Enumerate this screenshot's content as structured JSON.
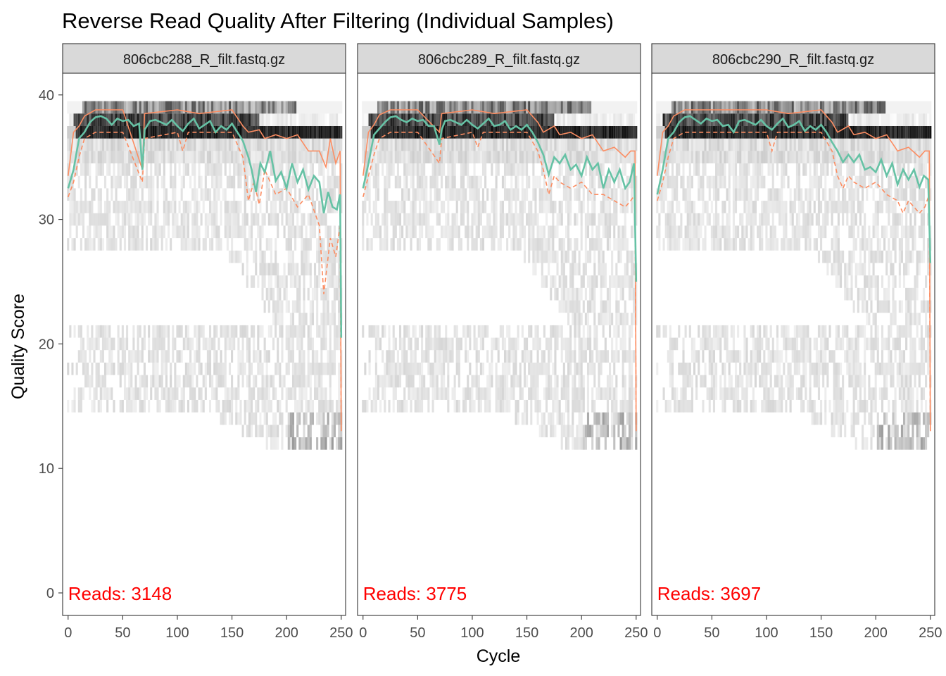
{
  "chart_data": {
    "type": "heatmap",
    "title": "Reverse Read Quality After Filtering (Individual Samples)",
    "xlabel": "Cycle",
    "ylabel": "Quality Score",
    "xlim": [
      -5,
      254
    ],
    "ylim": [
      -2,
      42
    ],
    "x_ticks": [
      "0",
      "50",
      "100",
      "150",
      "200",
      "250"
    ],
    "y_ticks": [
      "0",
      "10",
      "20",
      "30",
      "40"
    ],
    "colors": {
      "mean_line": "#66C2A5",
      "quartile_lines": "#FC8D62",
      "reads_label": "#FF0000",
      "strip_fill": "#D9D9D9",
      "panel_border": "#333333"
    },
    "panels": [
      {
        "strip": "806cbc288_R_filt.fastq.gz",
        "reads_prefix": "Reads: ",
        "reads": "3148",
        "mean": [
          [
            0,
            32.5
          ],
          [
            5,
            34
          ],
          [
            10,
            36.5
          ],
          [
            15,
            37
          ],
          [
            20,
            37.8
          ],
          [
            25,
            38.2
          ],
          [
            30,
            38.3
          ],
          [
            35,
            38.1
          ],
          [
            40,
            37.6
          ],
          [
            45,
            38.1
          ],
          [
            50,
            37.9
          ],
          [
            55,
            38.0
          ],
          [
            60,
            37.5
          ],
          [
            65,
            37.7
          ],
          [
            68,
            34
          ],
          [
            70,
            37.2
          ],
          [
            75,
            37.9
          ],
          [
            80,
            38.0
          ],
          [
            85,
            37.8
          ],
          [
            90,
            37.6
          ],
          [
            95,
            38.0
          ],
          [
            100,
            37.5
          ],
          [
            105,
            37.1
          ],
          [
            110,
            37.7
          ],
          [
            115,
            38.1
          ],
          [
            120,
            37.3
          ],
          [
            125,
            37.6
          ],
          [
            130,
            37.9
          ],
          [
            135,
            37.0
          ],
          [
            140,
            37.5
          ],
          [
            145,
            37.2
          ],
          [
            150,
            37.7
          ],
          [
            155,
            37.0
          ],
          [
            160,
            36.3
          ],
          [
            165,
            35.0
          ],
          [
            168,
            34
          ],
          [
            172,
            32.2
          ],
          [
            176,
            34.5
          ],
          [
            180,
            33.8
          ],
          [
            185,
            35.5
          ],
          [
            190,
            33.1
          ],
          [
            195,
            33.8
          ],
          [
            200,
            32.5
          ],
          [
            205,
            34.5
          ],
          [
            210,
            33.0
          ],
          [
            215,
            34.0
          ],
          [
            220,
            32.4
          ],
          [
            225,
            33.5
          ],
          [
            230,
            33.0
          ],
          [
            234,
            30.5
          ],
          [
            238,
            32.2
          ],
          [
            242,
            31.0
          ],
          [
            246,
            30.8
          ],
          [
            249,
            32.0
          ],
          [
            250,
            20.5
          ]
        ],
        "q75": [
          [
            0,
            33.5
          ],
          [
            5,
            37
          ],
          [
            10,
            37.5
          ],
          [
            15,
            38.3
          ],
          [
            25,
            38.8
          ],
          [
            50,
            38.8
          ],
          [
            68,
            34.0
          ],
          [
            70,
            38.5
          ],
          [
            100,
            38.8
          ],
          [
            120,
            38.5
          ],
          [
            150,
            38.8
          ],
          [
            160,
            37.5
          ],
          [
            165,
            37.0
          ],
          [
            175,
            37.2
          ],
          [
            180,
            36.5
          ],
          [
            190,
            36.8
          ],
          [
            200,
            36.5
          ],
          [
            210,
            36.8
          ],
          [
            220,
            35.5
          ],
          [
            230,
            35.5
          ],
          [
            236,
            34.2
          ],
          [
            240,
            36.5
          ],
          [
            245,
            34.5
          ],
          [
            249,
            35.5
          ],
          [
            250,
            13
          ]
        ],
        "q25": [
          [
            0,
            31.8
          ],
          [
            5,
            33
          ],
          [
            10,
            35.0
          ],
          [
            15,
            36.5
          ],
          [
            25,
            37.0
          ],
          [
            50,
            37.0
          ],
          [
            68,
            33.0
          ],
          [
            70,
            36.5
          ],
          [
            100,
            37.0
          ],
          [
            105,
            35.5
          ],
          [
            110,
            37.0
          ],
          [
            150,
            37.0
          ],
          [
            160,
            35.0
          ],
          [
            165,
            31.5
          ],
          [
            170,
            33.0
          ],
          [
            175,
            31.2
          ],
          [
            180,
            34.0
          ],
          [
            190,
            32.0
          ],
          [
            200,
            32.5
          ],
          [
            210,
            31.0
          ],
          [
            220,
            32.0
          ],
          [
            230,
            29.5
          ],
          [
            234,
            24.0
          ],
          [
            240,
            28.5
          ],
          [
            245,
            27.0
          ],
          [
            249,
            29.5
          ],
          [
            250,
            13
          ]
        ],
        "ramp_pos": 0.55
      },
      {
        "strip": "806cbc289_R_filt.fastq.gz",
        "reads_prefix": "Reads: ",
        "reads": "3775",
        "mean": [
          [
            0,
            32.5
          ],
          [
            5,
            34.5
          ],
          [
            10,
            36.8
          ],
          [
            15,
            37.3
          ],
          [
            20,
            37.8
          ],
          [
            25,
            38.2
          ],
          [
            30,
            38.3
          ],
          [
            35,
            38.0
          ],
          [
            40,
            37.8
          ],
          [
            45,
            38.1
          ],
          [
            50,
            37.9
          ],
          [
            55,
            38.0
          ],
          [
            60,
            37.5
          ],
          [
            65,
            37.5
          ],
          [
            70,
            36.0
          ],
          [
            72,
            37.2
          ],
          [
            75,
            37.9
          ],
          [
            80,
            38.0
          ],
          [
            85,
            37.8
          ],
          [
            90,
            37.6
          ],
          [
            95,
            38.0
          ],
          [
            100,
            37.6
          ],
          [
            105,
            37.3
          ],
          [
            110,
            37.7
          ],
          [
            115,
            38.1
          ],
          [
            120,
            37.5
          ],
          [
            125,
            37.6
          ],
          [
            130,
            37.9
          ],
          [
            135,
            37.2
          ],
          [
            140,
            37.5
          ],
          [
            145,
            37.2
          ],
          [
            150,
            37.6
          ],
          [
            155,
            37.0
          ],
          [
            160,
            36.2
          ],
          [
            165,
            35.2
          ],
          [
            170,
            33.6
          ],
          [
            175,
            35.0
          ],
          [
            180,
            34.5
          ],
          [
            185,
            35.2
          ],
          [
            190,
            34.0
          ],
          [
            195,
            34.4
          ],
          [
            200,
            33.5
          ],
          [
            205,
            35.0
          ],
          [
            210,
            34.0
          ],
          [
            215,
            34.5
          ],
          [
            220,
            32.5
          ],
          [
            225,
            34.0
          ],
          [
            230,
            33.0
          ],
          [
            235,
            34.0
          ],
          [
            240,
            32.5
          ],
          [
            244,
            33.0
          ],
          [
            248,
            34.5
          ],
          [
            250,
            25.0
          ]
        ],
        "q75": [
          [
            0,
            33.5
          ],
          [
            5,
            37
          ],
          [
            10,
            37.6
          ],
          [
            15,
            38.4
          ],
          [
            25,
            38.8
          ],
          [
            50,
            38.8
          ],
          [
            70,
            37.0
          ],
          [
            72,
            38.5
          ],
          [
            100,
            38.8
          ],
          [
            120,
            38.5
          ],
          [
            150,
            38.8
          ],
          [
            160,
            37.8
          ],
          [
            165,
            37.0
          ],
          [
            175,
            37.5
          ],
          [
            180,
            36.8
          ],
          [
            190,
            37.0
          ],
          [
            200,
            36.5
          ],
          [
            210,
            36.8
          ],
          [
            220,
            35.5
          ],
          [
            230,
            35.8
          ],
          [
            240,
            35.0
          ],
          [
            245,
            35.5
          ],
          [
            249,
            35.5
          ],
          [
            250,
            13
          ]
        ],
        "q25": [
          [
            0,
            31.8
          ],
          [
            5,
            33.5
          ],
          [
            10,
            35.2
          ],
          [
            15,
            36.5
          ],
          [
            25,
            37.0
          ],
          [
            50,
            37.0
          ],
          [
            70,
            34.5
          ],
          [
            72,
            36.5
          ],
          [
            100,
            37.0
          ],
          [
            105,
            35.8
          ],
          [
            110,
            37.0
          ],
          [
            150,
            37.0
          ],
          [
            160,
            35.5
          ],
          [
            165,
            34.0
          ],
          [
            170,
            32.0
          ],
          [
            175,
            33.5
          ],
          [
            180,
            33.0
          ],
          [
            190,
            32.5
          ],
          [
            200,
            33.0
          ],
          [
            210,
            32.0
          ],
          [
            220,
            32.0
          ],
          [
            230,
            31.5
          ],
          [
            240,
            31.0
          ],
          [
            245,
            31.5
          ],
          [
            249,
            32.0
          ],
          [
            250,
            13
          ]
        ],
        "ramp_pos": 0.6
      },
      {
        "strip": "806cbc290_R_filt.fastq.gz",
        "reads_prefix": "Reads: ",
        "reads": "3697",
        "mean": [
          [
            0,
            32.0
          ],
          [
            5,
            34.0
          ],
          [
            10,
            36.5
          ],
          [
            15,
            37.0
          ],
          [
            20,
            37.8
          ],
          [
            25,
            38.2
          ],
          [
            30,
            38.3
          ],
          [
            35,
            38.0
          ],
          [
            40,
            37.7
          ],
          [
            45,
            38.1
          ],
          [
            50,
            37.9
          ],
          [
            55,
            38.0
          ],
          [
            60,
            37.5
          ],
          [
            65,
            37.6
          ],
          [
            70,
            37.0
          ],
          [
            75,
            37.9
          ],
          [
            80,
            38.0
          ],
          [
            85,
            37.8
          ],
          [
            90,
            37.6
          ],
          [
            95,
            38.0
          ],
          [
            100,
            37.5
          ],
          [
            105,
            37.2
          ],
          [
            110,
            37.7
          ],
          [
            115,
            38.1
          ],
          [
            120,
            37.4
          ],
          [
            125,
            37.6
          ],
          [
            130,
            37.9
          ],
          [
            135,
            37.1
          ],
          [
            140,
            37.5
          ],
          [
            145,
            37.2
          ],
          [
            150,
            37.6
          ],
          [
            155,
            37.0
          ],
          [
            160,
            36.2
          ],
          [
            165,
            35.5
          ],
          [
            170,
            34.6
          ],
          [
            175,
            35.2
          ],
          [
            180,
            34.6
          ],
          [
            185,
            35.2
          ],
          [
            190,
            34.0
          ],
          [
            195,
            34.2
          ],
          [
            200,
            33.8
          ],
          [
            205,
            34.8
          ],
          [
            210,
            33.5
          ],
          [
            215,
            34.5
          ],
          [
            220,
            32.8
          ],
          [
            225,
            34.0
          ],
          [
            230,
            33.2
          ],
          [
            235,
            34.0
          ],
          [
            240,
            32.6
          ],
          [
            244,
            33.5
          ],
          [
            248,
            33.2
          ],
          [
            250,
            26.5
          ]
        ],
        "q75": [
          [
            0,
            33.5
          ],
          [
            5,
            37
          ],
          [
            10,
            37.5
          ],
          [
            15,
            38.3
          ],
          [
            25,
            38.8
          ],
          [
            50,
            38.8
          ],
          [
            100,
            38.8
          ],
          [
            120,
            38.5
          ],
          [
            150,
            38.8
          ],
          [
            160,
            37.8
          ],
          [
            165,
            37.0
          ],
          [
            175,
            37.5
          ],
          [
            180,
            36.8
          ],
          [
            190,
            37.0
          ],
          [
            200,
            36.5
          ],
          [
            210,
            36.8
          ],
          [
            220,
            35.5
          ],
          [
            230,
            35.8
          ],
          [
            240,
            35.0
          ],
          [
            245,
            35.5
          ],
          [
            249,
            35.5
          ],
          [
            250,
            13
          ]
        ],
        "q25": [
          [
            0,
            31.5
          ],
          [
            5,
            33
          ],
          [
            10,
            35.0
          ],
          [
            15,
            36.5
          ],
          [
            25,
            37.0
          ],
          [
            50,
            37.0
          ],
          [
            100,
            37.0
          ],
          [
            105,
            35.5
          ],
          [
            110,
            37.0
          ],
          [
            150,
            37.0
          ],
          [
            160,
            35.5
          ],
          [
            165,
            33.5
          ],
          [
            170,
            32.5
          ],
          [
            175,
            33.5
          ],
          [
            180,
            33.0
          ],
          [
            190,
            32.5
          ],
          [
            200,
            33.0
          ],
          [
            210,
            32.0
          ],
          [
            220,
            31.5
          ],
          [
            225,
            30.5
          ],
          [
            230,
            31.5
          ],
          [
            240,
            30.5
          ],
          [
            245,
            31.0
          ],
          [
            249,
            32.0
          ],
          [
            250,
            13
          ]
        ],
        "ramp_pos": 0.6
      }
    ]
  }
}
